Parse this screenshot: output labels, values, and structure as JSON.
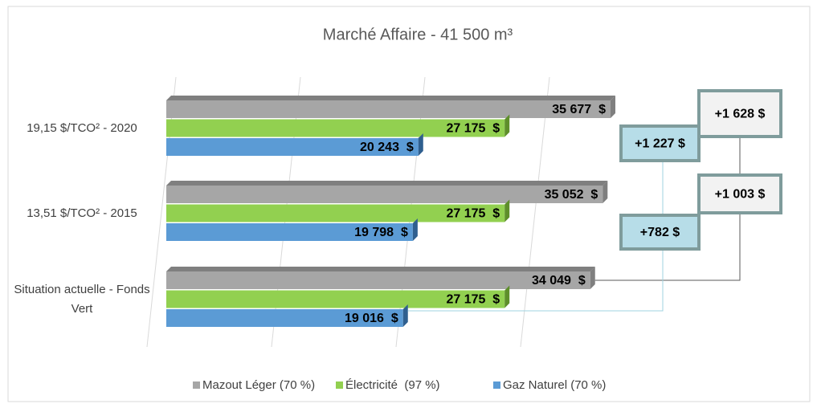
{
  "chart_data": {
    "type": "bar3d_horizontal",
    "title": "Marché Affaire - 41 500 m³",
    "categories": [
      "19,15 $/TCO² - 2020",
      "13,51 $/TCO² - 2015",
      "Situation actuelle - Fonds Vert"
    ],
    "series": [
      {
        "name": "Mazout Léger (70 %)",
        "color": "#a6a6a6",
        "side": "#7f7f7f",
        "values": [
          35677,
          35052,
          34049
        ],
        "value_labels": [
          "35 677  $",
          "35 052  $",
          "34 049  $"
        ]
      },
      {
        "name": "Électricité  (97 %)",
        "color": "#92d050",
        "side": "#5e8f2a",
        "values": [
          27175,
          27175,
          27175
        ],
        "value_labels": [
          "27 175  $",
          "27 175  $",
          "27 175  $"
        ]
      },
      {
        "name": "Gaz Naturel (70 %)",
        "color": "#5b9bd5",
        "side": "#2f5f8f",
        "values": [
          20243,
          19798,
          19016
        ],
        "value_labels": [
          "20 243  $",
          "19 798  $",
          "19 016  $"
        ]
      }
    ],
    "xlim": [
      0,
      40000
    ],
    "xticks": [
      0,
      10000,
      20000,
      30000
    ],
    "grid": true,
    "legend": "bottom",
    "annotations": [
      "+1 628 $",
      "+1 227 $",
      "+1 003 $",
      "+782 $"
    ]
  }
}
